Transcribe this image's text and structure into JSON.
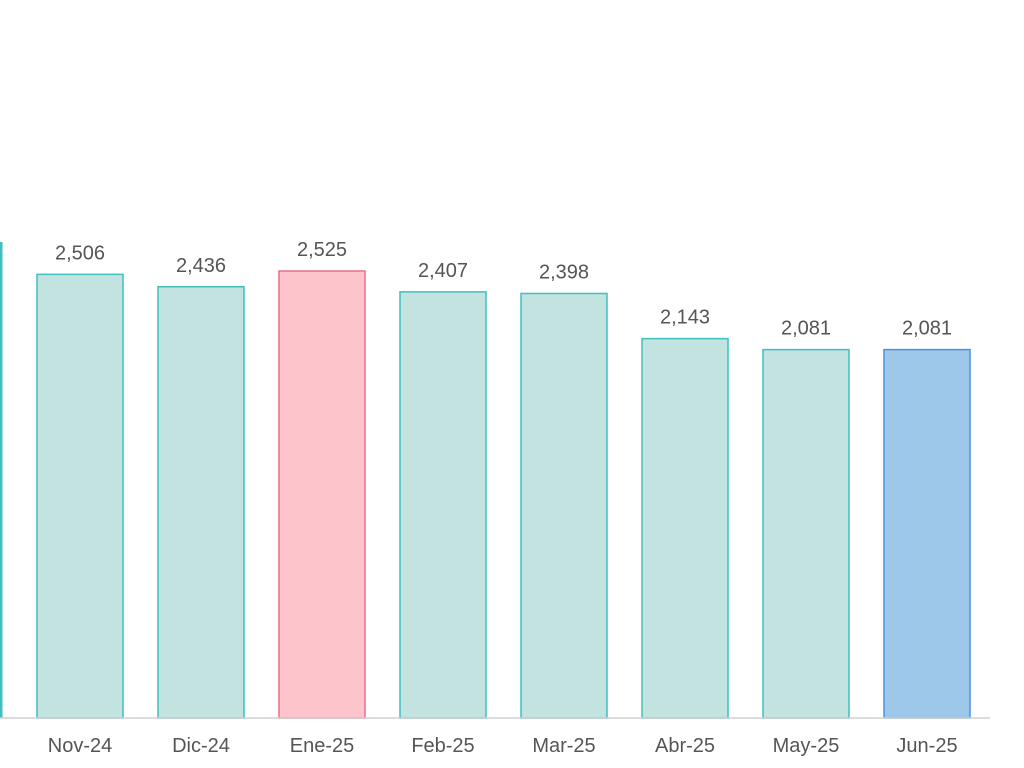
{
  "chart_data": {
    "type": "bar",
    "categories": [
      "Nov-24",
      "Dic-24",
      "Ene-25",
      "Feb-25",
      "Mar-25",
      "Abr-25",
      "May-25",
      "Jun-25"
    ],
    "values": [
      2506,
      2436,
      2525,
      2407,
      2398,
      2143,
      2081,
      2081
    ],
    "value_labels": [
      "2,506",
      "2,436",
      "2,525",
      "2,407",
      "2,398",
      "2,143",
      "2,081",
      "2,081"
    ],
    "bar_styles": [
      "default",
      "default",
      "highlight",
      "default",
      "default",
      "default",
      "default",
      "current"
    ],
    "ylim": [
      0,
      2525
    ],
    "grid": false,
    "legend": "none",
    "title": "",
    "xlabel": "",
    "ylabel": ""
  },
  "colors": {
    "default_fill": "#c3e3e1",
    "default_stroke": "#3fbfc0",
    "highlight_fill": "#fdc4cc",
    "highlight_stroke": "#ec6f86",
    "current_fill": "#9ec8ea",
    "current_stroke": "#4b93e0",
    "axis": "#d0d0d0",
    "text": "#555555",
    "edge_bar_stroke": "#3fbfc0"
  }
}
